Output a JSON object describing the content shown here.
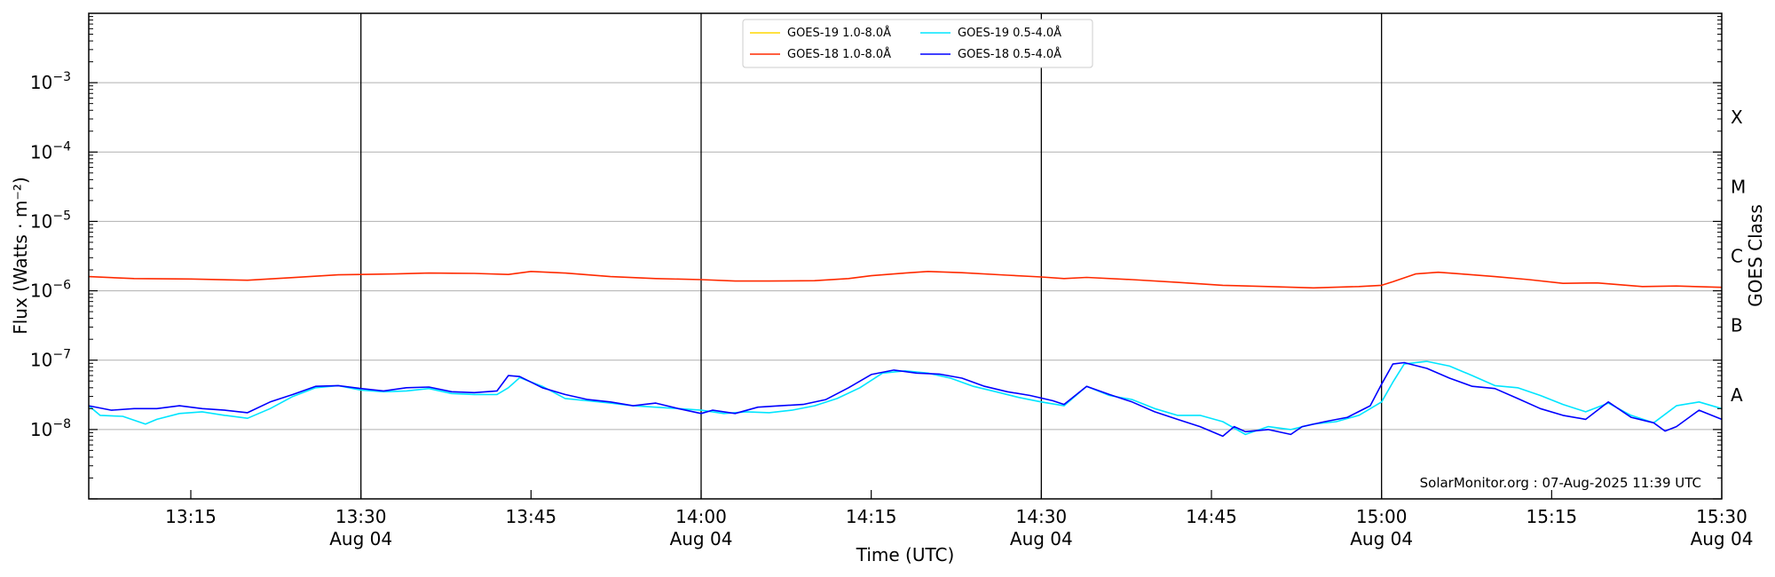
{
  "chart_data": {
    "type": "line",
    "title": "",
    "xlabel": "Time (UTC)",
    "ylabel": "Flux (Watts · m⁻²)",
    "ylabel_right": "GOES Class",
    "y_scale": "log",
    "ylim": [
      "1e-9",
      "1e-2"
    ],
    "xlim": [
      "2025-08-04 13:06",
      "2025-08-04 15:30"
    ],
    "grid": "horizontal",
    "legend_position": "top-center",
    "credit": "SolarMonitor.org : 07-Aug-2025 11:39 UTC",
    "y_ticks": [
      {
        "value": "1e-3",
        "base": "10",
        "exp": "−3"
      },
      {
        "value": "1e-4",
        "base": "10",
        "exp": "−4"
      },
      {
        "value": "1e-5",
        "base": "10",
        "exp": "−5"
      },
      {
        "value": "1e-6",
        "base": "10",
        "exp": "−6"
      },
      {
        "value": "1e-7",
        "base": "10",
        "exp": "−7"
      },
      {
        "value": "1e-8",
        "base": "10",
        "exp": "−8"
      }
    ],
    "x_ticks": [
      {
        "time": "13:15",
        "label": "13:15",
        "date": ""
      },
      {
        "time": "13:30",
        "label": "13:30",
        "date": "Aug 04"
      },
      {
        "time": "13:45",
        "label": "13:45",
        "date": ""
      },
      {
        "time": "14:00",
        "label": "14:00",
        "date": "Aug 04"
      },
      {
        "time": "14:15",
        "label": "14:15",
        "date": ""
      },
      {
        "time": "14:30",
        "label": "14:30",
        "date": "Aug 04"
      },
      {
        "time": "14:45",
        "label": "14:45",
        "date": ""
      },
      {
        "time": "15:00",
        "label": "15:00",
        "date": "Aug 04"
      },
      {
        "time": "15:15",
        "label": "15:15",
        "date": ""
      },
      {
        "time": "15:30",
        "label": "15:30",
        "date": "Aug 04"
      }
    ],
    "goes_classes": [
      {
        "label": "X",
        "low": "1e-4",
        "high": "1e-3"
      },
      {
        "label": "M",
        "low": "1e-5",
        "high": "1e-4"
      },
      {
        "label": "C",
        "low": "1e-6",
        "high": "1e-5"
      },
      {
        "label": "B",
        "low": "1e-7",
        "high": "1e-6"
      },
      {
        "label": "A",
        "low": "1e-8",
        "high": "1e-7"
      }
    ],
    "series": [
      {
        "name": "GOES-19 1.0-8.0Å",
        "color": "#ffd700",
        "x": [],
        "y": []
      },
      {
        "name": "GOES-18 1.0-8.0Å",
        "color": "#ff2a00",
        "x": [
          "13:06",
          "13:10",
          "13:15",
          "13:20",
          "13:24",
          "13:28",
          "13:30",
          "13:33",
          "13:36",
          "13:40",
          "13:43",
          "13:45",
          "13:48",
          "13:52",
          "13:56",
          "14:00",
          "14:03",
          "14:06",
          "14:10",
          "14:13",
          "14:15",
          "14:18",
          "14:20",
          "14:23",
          "14:27",
          "14:30",
          "14:32",
          "14:34",
          "14:38",
          "14:42",
          "14:46",
          "14:50",
          "14:54",
          "14:58",
          "15:00",
          "15:01",
          "15:03",
          "15:05",
          "15:07",
          "15:10",
          "15:13",
          "15:16",
          "15:19",
          "15:23",
          "15:26",
          "15:30"
        ],
        "y": [
          "1.6e-6",
          "1.5e-6",
          "1.48e-6",
          "1.42e-6",
          "1.55e-6",
          "1.7e-6",
          "1.72e-6",
          "1.75e-6",
          "1.8e-6",
          "1.78e-6",
          "1.72e-6",
          "1.9e-6",
          "1.8e-6",
          "1.6e-6",
          "1.5e-6",
          "1.45e-6",
          "1.38e-6",
          "1.38e-6",
          "1.4e-6",
          "1.5e-6",
          "1.65e-6",
          "1.8e-6",
          "1.9e-6",
          "1.82e-6",
          "1.68e-6",
          "1.58e-6",
          "1.5e-6",
          "1.56e-6",
          "1.45e-6",
          "1.32e-6",
          "1.2e-6",
          "1.15e-6",
          "1.1e-6",
          "1.15e-6",
          "1.2e-6",
          "1.35e-6",
          "1.75e-6",
          "1.85e-6",
          "1.75e-6",
          "1.6e-6",
          "1.45e-6",
          "1.28e-6",
          "1.3e-6",
          "1.15e-6",
          "1.17e-6",
          "1.12e-6"
        ]
      },
      {
        "name": "GOES-19 0.5-4.0Å",
        "color": "#00e5ff",
        "x": [
          "13:06",
          "13:07",
          "13:09",
          "13:11",
          "13:12",
          "13:14",
          "13:16",
          "13:18",
          "13:20",
          "13:22",
          "13:24",
          "13:26",
          "13:28",
          "13:30",
          "13:32",
          "13:34",
          "13:36",
          "13:38",
          "13:40",
          "13:42",
          "13:43",
          "13:44",
          "13:46",
          "13:48",
          "13:50",
          "13:52",
          "13:54",
          "13:56",
          "13:58",
          "14:00",
          "14:02",
          "14:04",
          "14:06",
          "14:08",
          "14:10",
          "14:12",
          "14:14",
          "14:16",
          "14:18",
          "14:20",
          "14:22",
          "14:24",
          "14:26",
          "14:28",
          "14:30",
          "14:32",
          "14:34",
          "14:36",
          "14:38",
          "14:40",
          "14:42",
          "14:44",
          "14:46",
          "14:48",
          "14:50",
          "14:52",
          "14:54",
          "14:56",
          "14:58",
          "15:00",
          "15:01",
          "15:02",
          "15:04",
          "15:06",
          "15:08",
          "15:10",
          "15:12",
          "15:14",
          "15:16",
          "15:18",
          "15:20",
          "15:22",
          "15:24",
          "15:26",
          "15:28",
          "15:30"
        ],
        "y": [
          "2.2e-8",
          "1.6e-8",
          "1.55e-8",
          "1.2e-8",
          "1.4e-8",
          "1.7e-8",
          "1.8e-8",
          "1.6e-8",
          "1.45e-8",
          "2e-8",
          "3e-8",
          "4e-8",
          "4.3e-8",
          "3.7e-8",
          "3.5e-8",
          "3.6e-8",
          "3.9e-8",
          "3.3e-8",
          "3.2e-8",
          "3.2e-8",
          "4e-8",
          "5.6e-8",
          "4.2e-8",
          "2.8e-8",
          "2.6e-8",
          "2.4e-8",
          "2.2e-8",
          "2.1e-8",
          "2e-8",
          "1.9e-8",
          "1.7e-8",
          "1.8e-8",
          "1.75e-8",
          "1.9e-8",
          "2.2e-8",
          "2.8e-8",
          "4e-8",
          "6.5e-8",
          "7e-8",
          "6.5e-8",
          "5.5e-8",
          "4.2e-8",
          "3.5e-8",
          "2.9e-8",
          "2.5e-8",
          "2.2e-8",
          "4.2e-8",
          "3.1e-8",
          "2.7e-8",
          "2e-8",
          "1.6e-8",
          "1.6e-8",
          "1.3e-8",
          "8.5e-9",
          "1.1e-8",
          "1e-8",
          "1.2e-8",
          "1.3e-8",
          "1.6e-8",
          "2.5e-8",
          "4.8e-8",
          "8.8e-8",
          "9.6e-8",
          "8.2e-8",
          "6e-8",
          "4.3e-8",
          "4e-8",
          "3.1e-8",
          "2.3e-8",
          "1.8e-8",
          "2.4e-8",
          "1.6e-8",
          "1.25e-8",
          "2.2e-8",
          "2.5e-8",
          "2e-8"
        ]
      },
      {
        "name": "GOES-18 0.5-4.0Å",
        "color": "#0000ff",
        "x": [
          "13:06",
          "13:08",
          "13:10",
          "13:12",
          "13:14",
          "13:16",
          "13:18",
          "13:20",
          "13:22",
          "13:24",
          "13:26",
          "13:28",
          "13:30",
          "13:32",
          "13:34",
          "13:36",
          "13:38",
          "13:40",
          "13:42",
          "13:43",
          "13:44",
          "13:46",
          "13:48",
          "13:50",
          "13:52",
          "13:54",
          "13:56",
          "13:58",
          "14:00",
          "14:01",
          "14:03",
          "14:05",
          "14:07",
          "14:09",
          "14:11",
          "14:13",
          "14:15",
          "14:17",
          "14:19",
          "14:21",
          "14:23",
          "14:25",
          "14:27",
          "14:29",
          "14:31",
          "14:32",
          "14:34",
          "14:36",
          "14:38",
          "14:40",
          "14:42",
          "14:44",
          "14:46",
          "14:47",
          "14:48",
          "14:50",
          "14:52",
          "14:53",
          "14:55",
          "14:57",
          "14:59",
          "15:00",
          "15:01",
          "15:02",
          "15:04",
          "15:06",
          "15:08",
          "15:10",
          "15:12",
          "15:14",
          "15:16",
          "15:18",
          "15:20",
          "15:22",
          "15:24",
          "15:25",
          "15:26",
          "15:28",
          "15:30"
        ],
        "y": [
          "2.2e-8",
          "1.9e-8",
          "2e-8",
          "2e-8",
          "2.2e-8",
          "2e-8",
          "1.9e-8",
          "1.75e-8",
          "2.5e-8",
          "3.2e-8",
          "4.2e-8",
          "4.3e-8",
          "3.9e-8",
          "3.6e-8",
          "4e-8",
          "4.1e-8",
          "3.5e-8",
          "3.4e-8",
          "3.6e-8",
          "6e-8",
          "5.8e-8",
          "4e-8",
          "3.2e-8",
          "2.7e-8",
          "2.5e-8",
          "2.2e-8",
          "2.4e-8",
          "2e-8",
          "1.7e-8",
          "1.9e-8",
          "1.7e-8",
          "2.1e-8",
          "2.2e-8",
          "2.3e-8",
          "2.7e-8",
          "4e-8",
          "6.2e-8",
          "7.2e-8",
          "6.5e-8",
          "6.3e-8",
          "5.5e-8",
          "4.2e-8",
          "3.5e-8",
          "3.1e-8",
          "2.6e-8",
          "2.3e-8",
          "4.2e-8",
          "3.2e-8",
          "2.5e-8",
          "1.8e-8",
          "1.4e-8",
          "1.1e-8",
          "8e-9",
          "1.1e-8",
          "9.3e-9",
          "1e-8",
          "8.5e-9",
          "1.1e-8",
          "1.3e-8",
          "1.5e-8",
          "2.2e-8",
          "4.5e-8",
          "8.8e-8",
          "9.2e-8",
          "7.6e-8",
          "5.5e-8",
          "4.2e-8",
          "3.9e-8",
          "2.8e-8",
          "2e-8",
          "1.6e-8",
          "1.4e-8",
          "2.5e-8",
          "1.5e-8",
          "1.25e-8",
          "9.5e-9",
          "1.1e-8",
          "1.9e-8",
          "1.4e-8"
        ]
      }
    ]
  }
}
